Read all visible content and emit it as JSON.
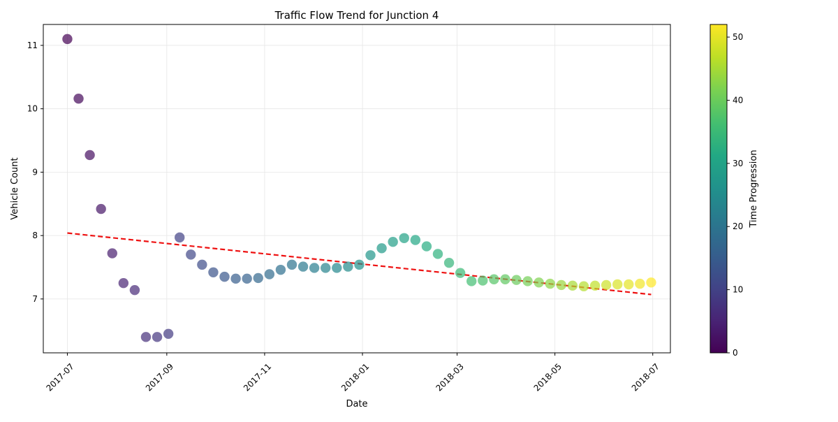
{
  "chart_data": {
    "type": "scatter",
    "title": "Traffic Flow Trend for Junction 4",
    "xlabel": "Date",
    "ylabel": "Vehicle Count",
    "xlim": [
      "2017-06-16",
      "2018-07-12"
    ],
    "ylim": [
      6.15,
      11.33
    ],
    "x_ticks": [
      "2017-07",
      "2017-09",
      "2017-11",
      "2018-01",
      "2018-03",
      "2018-05",
      "2018-07"
    ],
    "x_tick_dates": [
      "2017-07-01",
      "2017-09-01",
      "2017-11-01",
      "2018-01-01",
      "2018-03-01",
      "2018-05-01",
      "2018-07-01"
    ],
    "y_ticks": [
      7,
      8,
      9,
      10,
      11
    ],
    "grid": true,
    "colorbar": {
      "label": "Time Progression",
      "min": 0,
      "max": 52,
      "ticks": [
        0,
        10,
        20,
        30,
        40,
        50
      ],
      "colormap": "viridis"
    },
    "point_alpha": 0.7,
    "series": [
      {
        "x": [
          "2017-07-01",
          "2017-07-08",
          "2017-07-15",
          "2017-07-22",
          "2017-07-29",
          "2017-08-05",
          "2017-08-12",
          "2017-08-19",
          "2017-08-26",
          "2017-09-02",
          "2017-09-09",
          "2017-09-16",
          "2017-09-23",
          "2017-09-30",
          "2017-10-07",
          "2017-10-14",
          "2017-10-21",
          "2017-10-28",
          "2017-11-04",
          "2017-11-11",
          "2017-11-18",
          "2017-11-25",
          "2017-12-02",
          "2017-12-09",
          "2017-12-16",
          "2017-12-23",
          "2017-12-30",
          "2018-01-06",
          "2018-01-13",
          "2018-01-20",
          "2018-01-27",
          "2018-02-03",
          "2018-02-10",
          "2018-02-17",
          "2018-02-24",
          "2018-03-03",
          "2018-03-10",
          "2018-03-17",
          "2018-03-24",
          "2018-03-31",
          "2018-04-07",
          "2018-04-14",
          "2018-04-21",
          "2018-04-28",
          "2018-05-05",
          "2018-05-12",
          "2018-05-19",
          "2018-05-26",
          "2018-06-02",
          "2018-06-09",
          "2018-06-16",
          "2018-06-23",
          "2018-06-30"
        ],
        "y": [
          11.1,
          10.16,
          9.27,
          8.42,
          7.72,
          7.25,
          7.14,
          6.4,
          6.4,
          6.45,
          7.97,
          7.7,
          7.54,
          7.42,
          7.35,
          7.32,
          7.32,
          7.33,
          7.39,
          7.46,
          7.54,
          7.51,
          7.49,
          7.49,
          7.49,
          7.51,
          7.54,
          7.69,
          7.8,
          7.9,
          7.96,
          7.93,
          7.83,
          7.71,
          7.57,
          7.41,
          7.28,
          7.29,
          7.31,
          7.31,
          7.3,
          7.28,
          7.26,
          7.24,
          7.22,
          7.21,
          7.2,
          7.21,
          7.22,
          7.23,
          7.23,
          7.24,
          7.26
        ],
        "color_values": [
          0,
          1,
          2,
          3,
          4,
          5,
          6,
          7,
          8,
          9,
          10,
          11,
          12,
          13,
          14,
          15,
          16,
          17,
          18,
          19,
          20,
          21,
          22,
          23,
          24,
          25,
          26,
          27,
          28,
          29,
          30,
          31,
          32,
          33,
          34,
          35,
          36,
          37,
          38,
          39,
          40,
          41,
          42,
          43,
          44,
          45,
          46,
          47,
          48,
          49,
          50,
          51,
          52
        ]
      }
    ],
    "trendline": {
      "style": "dashed",
      "color": "#ee1111",
      "x": [
        "2017-07-01",
        "2018-06-30"
      ],
      "y": [
        8.04,
        7.07
      ]
    }
  }
}
